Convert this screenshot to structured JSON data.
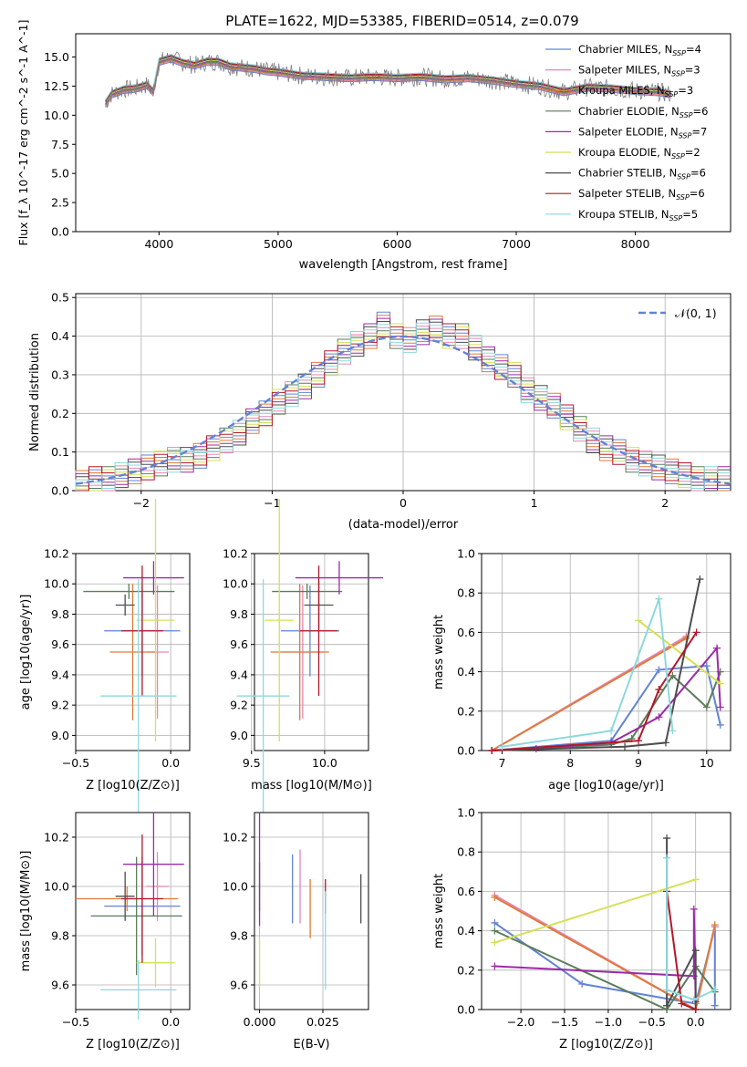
{
  "figure": {
    "title": "PLATE=1622, MJD=53385, FIBERID=0514, z=0.079"
  },
  "chart_data": [
    {
      "id": "spectrum",
      "type": "line",
      "title": "PLATE=1622, MJD=53385, FIBERID=0514, z=0.079",
      "xlabel": "wavelength [Angstrom, rest frame]",
      "ylabel": "Flux [f_λ 10^-17 erg cm^-2 s^-1 A^-1]",
      "xlim": [
        3300,
        8800
      ],
      "ylim": [
        0,
        17
      ],
      "xticks": [
        4000,
        5000,
        6000,
        7000,
        8000
      ],
      "yticks": [
        0.0,
        2.5,
        5.0,
        7.5,
        10.0,
        12.5,
        15.0
      ],
      "grid": false,
      "legend_position": "top-right",
      "data_series": {
        "name": "data",
        "color": "#808080",
        "x": [
          3550,
          3600,
          3700,
          3800,
          3900,
          3950,
          4000,
          4100,
          4200,
          4300,
          4400,
          4500,
          4600,
          4700,
          4800,
          4900,
          5000,
          5200,
          5400,
          5600,
          5800,
          6000,
          6200,
          6400,
          6600,
          6800,
          7000,
          7200,
          7400,
          7600,
          7800,
          8000,
          8200,
          8300
        ],
        "y": [
          11.0,
          11.8,
          12.2,
          12.3,
          12.6,
          12.0,
          14.6,
          14.9,
          14.5,
          14.3,
          14.6,
          14.6,
          14.2,
          14.1,
          14.0,
          13.8,
          13.7,
          13.4,
          13.3,
          13.2,
          13.3,
          13.2,
          13.3,
          13.1,
          13.2,
          13.0,
          12.7,
          12.5,
          12.0,
          12.4,
          12.3,
          12.1,
          12.0,
          11.8
        ]
      },
      "legend": [
        {
          "name": "Chabrier MILES, N_SSP=4",
          "label": "Chabrier MILES, N",
          "n": "=4",
          "color": "#6383d3"
        },
        {
          "name": "Salpeter MILES, N_SSP=3",
          "label": "Salpeter MILES, N",
          "n": "=3",
          "color": "#e786b8"
        },
        {
          "name": "Kroupa MILES, N_SSP=3",
          "label": "Kroupa MILES, N",
          "n": "=3",
          "color": "#e07b39"
        },
        {
          "name": "Chabrier ELODIE, N_SSP=6",
          "label": "Chabrier ELODIE, N",
          "n": "=6",
          "color": "#5a7d5a"
        },
        {
          "name": "Salpeter ELODIE, N_SSP=7",
          "label": "Salpeter ELODIE, N",
          "n": "=7",
          "color": "#9c2aa8"
        },
        {
          "name": "Kroupa ELODIE, N_SSP=2",
          "label": "Kroupa ELODIE, N",
          "n": "=2",
          "color": "#d4e157"
        },
        {
          "name": "Chabrier STELIB, N_SSP=6",
          "label": "Chabrier STELIB, N",
          "n": "=6",
          "color": "#4d4d4d"
        },
        {
          "name": "Salpeter STELIB, N_SSP=6",
          "label": "Salpeter STELIB, N",
          "n": "=6",
          "color": "#b2182b"
        },
        {
          "name": "Kroupa STELIB, N_SSP=5",
          "label": "Kroupa STELIB, N",
          "n": "=5",
          "color": "#8ed8dc"
        }
      ],
      "sub": "SSP"
    },
    {
      "id": "residual_hist",
      "type": "line",
      "xlabel": "(data-model)/error",
      "ylabel": "Normed distribution",
      "xlim": [
        -2.5,
        2.5
      ],
      "ylim": [
        0,
        0.51
      ],
      "xticks": [
        -2,
        -1,
        0,
        1,
        2
      ],
      "yticks": [
        0.0,
        0.1,
        0.2,
        0.3,
        0.4,
        0.5
      ],
      "grid": true,
      "legend_position": "top-right",
      "gaussian": {
        "name": "𝒩(0, 1)",
        "color": "#6383d3",
        "mean": 0,
        "sigma": 1
      },
      "bin_edges": [
        -2.5,
        -2.4,
        -2.3,
        -2.2,
        -2.1,
        -2.0,
        -1.9,
        -1.8,
        -1.7,
        -1.6,
        -1.5,
        -1.4,
        -1.3,
        -1.2,
        -1.1,
        -1.0,
        -0.9,
        -0.8,
        -0.7,
        -0.6,
        -0.5,
        -0.4,
        -0.3,
        -0.2,
        -0.1,
        0.0,
        0.1,
        0.2,
        0.3,
        0.4,
        0.5,
        0.6,
        0.7,
        0.8,
        0.9,
        1.0,
        1.1,
        1.2,
        1.3,
        1.4,
        1.5,
        1.6,
        1.7,
        1.8,
        1.9,
        2.0,
        2.1,
        2.2,
        2.3,
        2.4,
        2.5
      ],
      "hist_values": [
        0.02,
        0.03,
        0.03,
        0.04,
        0.05,
        0.06,
        0.07,
        0.08,
        0.08,
        0.09,
        0.11,
        0.13,
        0.15,
        0.18,
        0.2,
        0.23,
        0.25,
        0.27,
        0.3,
        0.33,
        0.36,
        0.38,
        0.4,
        0.43,
        0.4,
        0.39,
        0.41,
        0.42,
        0.4,
        0.4,
        0.37,
        0.34,
        0.32,
        0.3,
        0.26,
        0.24,
        0.22,
        0.19,
        0.16,
        0.13,
        0.11,
        0.1,
        0.08,
        0.07,
        0.06,
        0.05,
        0.04,
        0.03,
        0.03,
        0.03
      ]
    },
    {
      "id": "age_vs_Z",
      "type": "scatter",
      "xlabel": "Z [log10(Z/Z⊙)]",
      "ylabel": "age  [log10(age/yr)]",
      "xlim": [
        -0.5,
        0.1
      ],
      "ylim": [
        8.9,
        10.2
      ],
      "xticks": [
        -0.5,
        0.0
      ],
      "yticks": [
        9.0,
        9.2,
        9.4,
        9.6,
        9.8,
        10.0,
        10.2
      ],
      "grid": true,
      "points": [
        {
          "model": "Chabrier MILES",
          "x": -0.15,
          "xerr": 0.2,
          "y": 9.69,
          "yerr": 0.3
        },
        {
          "model": "Salpeter MILES",
          "x": -0.07,
          "xerr": 0.06,
          "y": 9.55,
          "yerr": 0.44
        },
        {
          "model": "Kroupa MILES",
          "x": -0.2,
          "xerr": 0.12,
          "y": 9.55,
          "yerr": 0.45
        },
        {
          "model": "Chabrier ELODIE",
          "x": -0.22,
          "xerr": 0.24,
          "y": 9.95,
          "yerr": 0.05
        },
        {
          "model": "Salpeter ELODIE",
          "x": -0.09,
          "xerr": 0.16,
          "y": 10.04,
          "yerr": 0.11
        },
        {
          "model": "Kroupa ELODIE",
          "x": -0.08,
          "xerr": 0.1,
          "y": 9.76,
          "yerr": 0.8
        },
        {
          "model": "Chabrier STELIB",
          "x": -0.24,
          "xerr": 0.05,
          "y": 9.86,
          "yerr": 0.07
        },
        {
          "model": "Salpeter STELIB",
          "x": -0.15,
          "xerr": 0.11,
          "y": 9.69,
          "yerr": 0.43
        },
        {
          "model": "Kroupa STELIB",
          "x": -0.17,
          "xerr": 0.2,
          "y": 9.26,
          "yerr": 0.77
        }
      ]
    },
    {
      "id": "age_vs_mass",
      "type": "scatter",
      "xlabel": "mass [log10(M/M⊙)]",
      "ylabel": "",
      "xlim": [
        9.52,
        10.3
      ],
      "ylim": [
        8.9,
        10.2
      ],
      "xticks": [
        9.5,
        10.0
      ],
      "yticks": [
        9.0,
        9.2,
        9.4,
        9.6,
        9.8,
        10.0,
        10.2
      ],
      "grid": true,
      "points": [
        {
          "model": "Chabrier MILES",
          "x": 9.9,
          "xerr": 0.2,
          "y": 9.69,
          "yerr": 0.3
        },
        {
          "model": "Salpeter MILES",
          "x": 9.85,
          "xerr": 0.14,
          "y": 9.55,
          "yerr": 0.44
        },
        {
          "model": "Kroupa MILES",
          "x": 9.83,
          "xerr": 0.2,
          "y": 9.55,
          "yerr": 0.45
        },
        {
          "model": "Chabrier ELODIE",
          "x": 9.88,
          "xerr": 0.24,
          "y": 9.95,
          "yerr": 0.05
        },
        {
          "model": "Salpeter ELODIE",
          "x": 10.1,
          "xerr": 0.3,
          "y": 10.04,
          "yerr": 0.11
        },
        {
          "model": "Kroupa ELODIE",
          "x": 9.69,
          "xerr": 0.1,
          "y": 9.76,
          "yerr": 0.8
        },
        {
          "model": "Chabrier STELIB",
          "x": 9.96,
          "xerr": 0.1,
          "y": 9.86,
          "yerr": 0.16
        },
        {
          "model": "Salpeter STELIB",
          "x": 9.96,
          "xerr": 0.13,
          "y": 9.69,
          "yerr": 0.43
        },
        {
          "model": "Kroupa STELIB",
          "x": 9.58,
          "xerr": 0.18,
          "y": 9.26,
          "yerr": 0.77
        }
      ]
    },
    {
      "id": "mass_weight_vs_age",
      "type": "line",
      "xlabel": "age  [log10(age/yr)]",
      "ylabel": "mass weight",
      "xlim": [
        6.7,
        10.35
      ],
      "ylim": [
        0,
        1.0
      ],
      "xticks": [
        7,
        8,
        9,
        10
      ],
      "yticks": [
        0.0,
        0.2,
        0.4,
        0.6,
        0.8,
        1.0
      ],
      "grid": true,
      "series": [
        {
          "name": "Chabrier MILES",
          "x": [
            6.85,
            8.6,
            9.3,
            10.0,
            10.2
          ],
          "y": [
            0.0,
            0.05,
            0.41,
            0.43,
            0.13
          ]
        },
        {
          "name": "Salpeter MILES",
          "x": [
            6.85,
            9.7
          ],
          "y": [
            0.0,
            0.58
          ]
        },
        {
          "name": "Kroupa MILES",
          "x": [
            6.85,
            9.7
          ],
          "y": [
            0.0,
            0.57
          ]
        },
        {
          "name": "Chabrier ELODIE",
          "x": [
            6.85,
            8.6,
            8.9,
            9.5,
            10.0,
            10.2
          ],
          "y": [
            0.0,
            0.03,
            0.06,
            0.38,
            0.22,
            0.4
          ]
        },
        {
          "name": "Salpeter ELODIE",
          "x": [
            7.5,
            8.6,
            9.3,
            10.15,
            10.2
          ],
          "y": [
            0.01,
            0.04,
            0.17,
            0.52,
            0.22
          ]
        },
        {
          "name": "Kroupa ELODIE",
          "x": [
            9.0,
            10.2
          ],
          "y": [
            0.66,
            0.34
          ]
        },
        {
          "name": "Chabrier STELIB",
          "x": [
            6.85,
            8.8,
            9.4,
            9.9
          ],
          "y": [
            0.0,
            0.02,
            0.04,
            0.87
          ]
        },
        {
          "name": "Salpeter STELIB",
          "x": [
            6.85,
            9.0,
            9.3,
            9.85
          ],
          "y": [
            0.0,
            0.05,
            0.31,
            0.6
          ]
        },
        {
          "name": "Kroupa STELIB",
          "x": [
            7.0,
            8.6,
            9.3,
            9.5
          ],
          "y": [
            0.02,
            0.1,
            0.77,
            0.1
          ]
        }
      ]
    },
    {
      "id": "mass_vs_Z",
      "type": "scatter",
      "xlabel": "Z [log10(Z/Z⊙)]",
      "ylabel": "mass [log10(M/M⊙)]",
      "xlim": [
        -0.5,
        0.1
      ],
      "ylim": [
        9.5,
        10.3
      ],
      "xticks": [
        -0.5,
        0.0
      ],
      "yticks": [
        9.6,
        9.8,
        10.0,
        10.2
      ],
      "grid": true,
      "points": [
        {
          "model": "Chabrier MILES",
          "x": -0.15,
          "xerr": 0.2,
          "y": 9.92,
          "yerr": 0.2
        },
        {
          "model": "Salpeter MILES",
          "x": -0.07,
          "xerr": 0.06,
          "y": 10.0,
          "yerr": 0.14
        },
        {
          "model": "Kroupa MILES",
          "x": -0.23,
          "xerr": 0.27,
          "y": 9.95,
          "yerr": 0.05
        },
        {
          "model": "Chabrier ELODIE",
          "x": -0.18,
          "xerr": 0.24,
          "y": 9.88,
          "yerr": 0.24
        },
        {
          "model": "Salpeter ELODIE",
          "x": -0.09,
          "xerr": 0.16,
          "y": 10.09,
          "yerr": 0.21
        },
        {
          "model": "Kroupa ELODIE",
          "x": -0.08,
          "xerr": 0.1,
          "y": 9.69,
          "yerr": 0.1
        },
        {
          "model": "Chabrier STELIB",
          "x": -0.24,
          "xerr": 0.05,
          "y": 9.96,
          "yerr": 0.1
        },
        {
          "model": "Salpeter STELIB",
          "x": -0.15,
          "xerr": 0.11,
          "y": 9.95,
          "yerr": 0.26
        },
        {
          "model": "Kroupa STELIB",
          "x": -0.17,
          "xerr": 0.2,
          "y": 9.58,
          "yerr": 0.12
        }
      ]
    },
    {
      "id": "mass_vs_ebv",
      "type": "scatter",
      "xlabel": "E(B-V)",
      "ylabel": "",
      "xlim": [
        -0.002,
        0.043
      ],
      "ylim": [
        9.5,
        10.3
      ],
      "xticks": [
        0.0,
        0.025
      ],
      "tick_labels": [
        "0.000",
        "0.025"
      ],
      "yticks": [
        9.6,
        9.8,
        10.0,
        10.2
      ],
      "grid": true,
      "points": [
        {
          "model": "Chabrier MILES",
          "x": 0.013,
          "xerr": 0,
          "y": 9.99,
          "yerr": 0.14
        },
        {
          "model": "Salpeter MILES",
          "x": 0.016,
          "xerr": 0,
          "y": 10.0,
          "yerr": 0.15
        },
        {
          "model": "Kroupa MILES",
          "x": 0.02,
          "xerr": 0,
          "y": 9.91,
          "yerr": 0.12
        },
        {
          "model": "Chabrier ELODIE",
          "x": 0.0,
          "xerr": 0,
          "y": 10.0,
          "yerr": 0.1
        },
        {
          "model": "Salpeter ELODIE",
          "x": 0.0,
          "xerr": 0,
          "y": 10.07,
          "yerr": 0.23
        },
        {
          "model": "Kroupa ELODIE",
          "x": 0.0,
          "xerr": 0,
          "y": 9.69,
          "yerr": 0.1
        },
        {
          "model": "Chabrier STELIB",
          "x": 0.04,
          "xerr": 0,
          "y": 9.95,
          "yerr": 0.1
        },
        {
          "model": "Salpeter STELIB",
          "x": 0.026,
          "xerr": 0,
          "y": 9.96,
          "yerr": 0.07
        },
        {
          "model": "Kroupa STELIB",
          "x": 0.026,
          "xerr": 0,
          "y": 9.78,
          "yerr": 0.2
        }
      ]
    },
    {
      "id": "mass_weight_vs_Z",
      "type": "line",
      "xlabel": "Z [log10(Z/Z⊙)]",
      "ylabel": "mass weight",
      "xlim": [
        -2.45,
        0.4
      ],
      "ylim": [
        0,
        1.0
      ],
      "xticks": [
        -2.0,
        -1.5,
        -1.0,
        -0.5,
        0.0
      ],
      "yticks": [
        0.0,
        0.2,
        0.4,
        0.6,
        0.8,
        1.0
      ],
      "grid": true,
      "series": [
        {
          "name": "Chabrier MILES",
          "x": [
            -2.3,
            -1.3,
            0.0,
            0.22,
            0.22
          ],
          "y": [
            0.44,
            0.13,
            0.03,
            0.42,
            0.02
          ]
        },
        {
          "name": "Salpeter MILES",
          "x": [
            -2.3,
            0.0,
            0.22
          ],
          "y": [
            0.58,
            0.0,
            0.42
          ]
        },
        {
          "name": "Kroupa MILES",
          "x": [
            -2.3,
            0.0,
            0.22
          ],
          "y": [
            0.57,
            0.0,
            0.43
          ]
        },
        {
          "name": "Chabrier ELODIE",
          "x": [
            -2.3,
            -0.33,
            -0.33,
            0.0,
            0.22
          ],
          "y": [
            0.4,
            0.0,
            0.0,
            0.22,
            0.09
          ]
        },
        {
          "name": "Salpeter ELODIE",
          "x": [
            -2.3,
            -0.02,
            -0.02,
            0.0
          ],
          "y": [
            0.22,
            0.17,
            0.51,
            0.04
          ]
        },
        {
          "name": "Kroupa ELODIE",
          "x": [
            -2.3,
            0.0
          ],
          "y": [
            0.34,
            0.66
          ]
        },
        {
          "name": "Chabrier STELIB",
          "x": [
            -0.33,
            -0.33,
            0.0,
            0.0
          ],
          "y": [
            0.87,
            0.02,
            0.3,
            0.0
          ]
        },
        {
          "name": "Salpeter STELIB",
          "x": [
            -0.33,
            -0.16,
            0.0,
            0.0
          ],
          "y": [
            0.6,
            0.03,
            0.0,
            0.0
          ]
        },
        {
          "name": "Kroupa STELIB",
          "x": [
            -0.33,
            -0.33,
            -0.02,
            0.22
          ],
          "y": [
            0.77,
            0.1,
            0.05,
            0.1
          ]
        }
      ]
    }
  ]
}
